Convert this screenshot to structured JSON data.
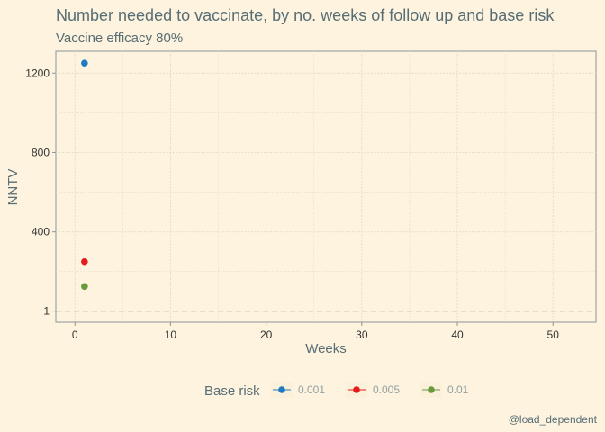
{
  "chart_data": {
    "type": "scatter",
    "title": "Number needed to vaccinate, by no. weeks of follow up and base risk",
    "subtitle": "Vaccine efficacy 80%",
    "xlabel": "Weeks",
    "ylabel": "NNTV",
    "xlim": [
      -2,
      54.5
    ],
    "ylim": [
      -55,
      1310
    ],
    "x_ticks": [
      0,
      10,
      20,
      30,
      40,
      50
    ],
    "y_ticks": [
      1,
      400,
      800,
      1200
    ],
    "grid": true,
    "reference_line": {
      "y": 1,
      "style": "dashed",
      "color": "#555555"
    },
    "legend": {
      "title": "Base risk",
      "position": "bottom"
    },
    "series": [
      {
        "name": "0.001",
        "color": "#1f7ac4",
        "points": [
          [
            1,
            1250
          ]
        ]
      },
      {
        "name": "0.005",
        "color": "#e41a1c",
        "points": [
          [
            1,
            250
          ]
        ]
      },
      {
        "name": "0.01",
        "color": "#6a9a3a",
        "points": [
          [
            1,
            125
          ]
        ]
      }
    ],
    "caption": "@load_dependent"
  },
  "colors": {
    "background": "#fdf3de",
    "text": "#586e75",
    "grid": "#e6dcc4",
    "axis": "#8a9699"
  }
}
